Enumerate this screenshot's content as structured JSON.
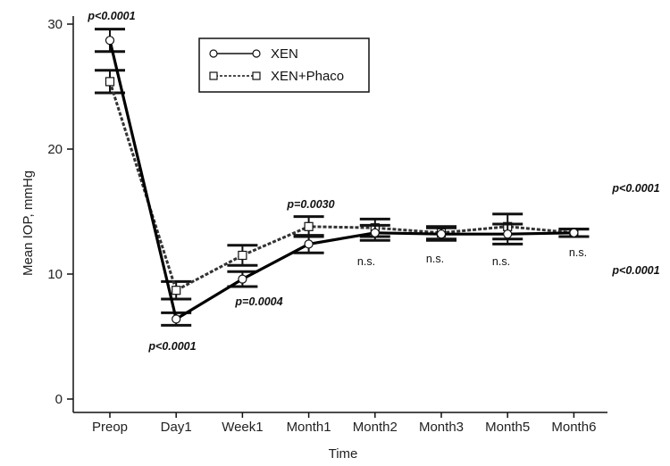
{
  "chart_data": {
    "type": "line",
    "title": "",
    "xlabel": "Time",
    "ylabel": "Mean IOP, mmHg",
    "ylim": [
      0,
      30
    ],
    "yticks": [
      "0",
      "10",
      "20",
      "30"
    ],
    "grid": false,
    "legend_position": "top-center",
    "categories": [
      "Preop",
      "Day1",
      "Week1",
      "Month1",
      "Month2",
      "Month3",
      "Month5",
      "Month6"
    ],
    "series": [
      {
        "name": "XEN",
        "line_style": "solid",
        "marker": "circle",
        "values": [
          28.7,
          6.4,
          9.6,
          12.4,
          13.3,
          13.2,
          13.2,
          13.3
        ],
        "error": [
          0.9,
          0.5,
          0.6,
          0.7,
          0.6,
          0.5,
          0.8,
          0.3
        ]
      },
      {
        "name": "XEN+Phaco",
        "line_style": "dashed",
        "marker": "square",
        "values": [
          25.4,
          8.7,
          11.5,
          13.8,
          13.7,
          13.3,
          13.8,
          13.3
        ],
        "error": [
          0.9,
          0.7,
          0.8,
          0.8,
          0.7,
          0.5,
          1.0,
          0.3
        ]
      }
    ],
    "annotations": [
      {
        "text": "p<0.0001",
        "category": "Preop",
        "position": "above",
        "style": "bold-italic"
      },
      {
        "text": "p<0.0001",
        "category": "Day1",
        "position": "below",
        "style": "bold-italic"
      },
      {
        "text": "p=0.0004",
        "category": "Week1",
        "position": "below",
        "style": "bold-italic"
      },
      {
        "text": "p=0.0030",
        "category": "Month1",
        "position": "above",
        "style": "bold-italic"
      },
      {
        "text": "n.s.",
        "category": "Month2",
        "position": "below",
        "style": "normal"
      },
      {
        "text": "n.s.",
        "category": "Month3",
        "position": "below",
        "style": "normal"
      },
      {
        "text": "n.s.",
        "category": "Month5",
        "position": "below",
        "style": "normal"
      },
      {
        "text": "n.s.",
        "category": "Month6",
        "position": "below",
        "style": "normal"
      },
      {
        "text": "p<0.0001",
        "category": "right-margin",
        "position": "upper",
        "style": "bold-italic"
      },
      {
        "text": "p<0.0001",
        "category": "right-margin",
        "position": "lower",
        "style": "bold-italic"
      }
    ]
  }
}
